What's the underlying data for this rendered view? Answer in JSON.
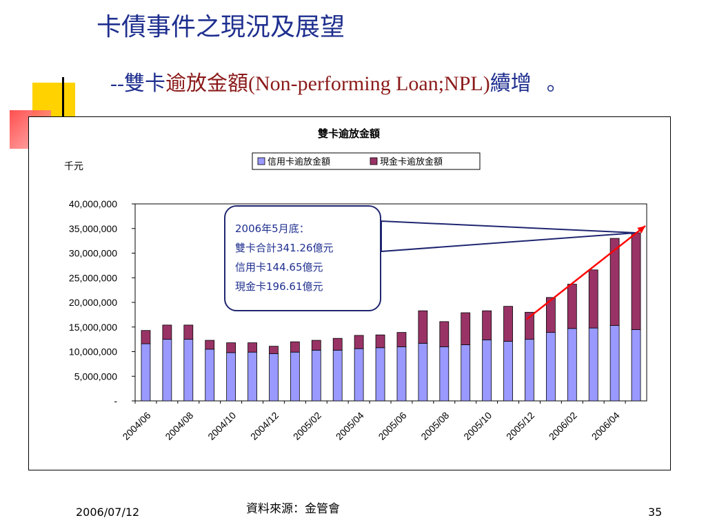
{
  "slide": {
    "title": "卡債事件之現況及展望",
    "subtitle_dash": "--",
    "subtitle_pre": "雙卡",
    "subtitle_main": "逾放金額(Non-performing Loan;NPL)",
    "subtitle_post": "續增",
    "subtitle_end": "。"
  },
  "colors": {
    "credit": "#9999ff",
    "cash": "#993366",
    "trend": "#ff0000",
    "callout_line": "#1f2570"
  },
  "callout": {
    "line1": "2006年5月底：",
    "line2": "雙卡合計341.26億元",
    "line3": "信用卡144.65億元",
    "line4": "現金卡196.61億元"
  },
  "chart_data": {
    "type": "bar",
    "stacked": true,
    "title": "雙卡逾放金額",
    "ylabel": "千元",
    "xlabel": "",
    "ylim": [
      0,
      40000000
    ],
    "yticks": [
      "-",
      "5,000,000",
      "10,000,000",
      "15,000,000",
      "20,000,000",
      "25,000,000",
      "30,000,000",
      "35,000,000",
      "40,000,000"
    ],
    "xtick_labels": [
      "2004/06",
      "2004/08",
      "2004/10",
      "2004/12",
      "2005/02",
      "2005/04",
      "2005/06",
      "2005/08",
      "2005/10",
      "2005/12",
      "2006/02",
      "2006/04"
    ],
    "categories": [
      "2004/06",
      "2004/07",
      "2004/08",
      "2004/09",
      "2004/10",
      "2004/11",
      "2004/12",
      "2005/01",
      "2005/02",
      "2005/03",
      "2005/04",
      "2005/05",
      "2005/06",
      "2005/07",
      "2005/08",
      "2005/09",
      "2005/10",
      "2005/11",
      "2005/12",
      "2006/01",
      "2006/02",
      "2006/03",
      "2006/04",
      "2006/05"
    ],
    "legend_position": "top-center",
    "series": [
      {
        "name": "信用卡逾放金額",
        "values": [
          11600000,
          12500000,
          12500000,
          10500000,
          9800000,
          9900000,
          9600000,
          9900000,
          10300000,
          10300000,
          10600000,
          10800000,
          11000000,
          11700000,
          11000000,
          11400000,
          12400000,
          12100000,
          12500000,
          13900000,
          14700000,
          14800000,
          15300000,
          14465000
        ]
      },
      {
        "name": "現金卡逾放金額",
        "values": [
          2700000,
          2900000,
          2900000,
          1800000,
          2000000,
          1900000,
          1500000,
          2100000,
          2000000,
          2400000,
          2700000,
          2600000,
          2900000,
          6600000,
          5100000,
          6500000,
          5900000,
          7100000,
          5500000,
          7100000,
          9000000,
          11800000,
          17700000,
          19661000
        ]
      }
    ]
  },
  "footer": {
    "date": "2006/07/12",
    "source": "資料來源：金管會",
    "page": "35"
  }
}
